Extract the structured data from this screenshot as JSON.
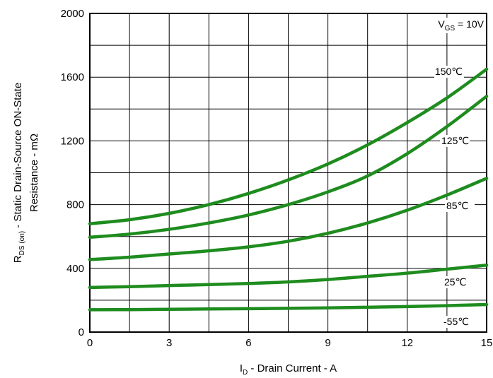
{
  "chart_data": {
    "type": "line",
    "xlabel": {
      "main": "I",
      "sub": "D",
      "rest": " - Drain Current - A"
    },
    "ylabel": {
      "line1_main": "R",
      "line1_sub": "DS (on)",
      "line1_rest": " - Static Drain-Source ON-State",
      "line2": "Resistance - mΩ"
    },
    "xlim": [
      0,
      15
    ],
    "ylim": [
      0,
      2000
    ],
    "xticks": [
      "0",
      "3",
      "6",
      "9",
      "12",
      "15"
    ],
    "yticks": [
      "0",
      "400",
      "800",
      "1200",
      "1600",
      "2000"
    ],
    "grid": true,
    "line_color": "#1e8c1e",
    "condition": {
      "main": "V",
      "sub": "GS",
      "rest": " = 10V"
    },
    "series": [
      {
        "name": "150℃",
        "x": [
          0,
          1.5,
          3,
          4.5,
          6,
          7.5,
          9,
          10.5,
          12,
          13.5,
          15
        ],
        "y": [
          680,
          705,
          745,
          800,
          870,
          955,
          1055,
          1175,
          1315,
          1470,
          1650
        ]
      },
      {
        "name": "125℃",
        "x": [
          0,
          1.5,
          3,
          4.5,
          6,
          7.5,
          9,
          10.5,
          12,
          13.5,
          15
        ],
        "y": [
          595,
          615,
          645,
          685,
          735,
          800,
          880,
          980,
          1120,
          1290,
          1480
        ]
      },
      {
        "name": "85℃",
        "x": [
          0,
          1.5,
          3,
          4.5,
          6,
          7.5,
          9,
          10.5,
          12,
          13.5,
          15
        ],
        "y": [
          455,
          470,
          490,
          510,
          535,
          570,
          620,
          685,
          765,
          860,
          965
        ]
      },
      {
        "name": "25℃",
        "x": [
          0,
          1.5,
          3,
          4.5,
          6,
          7.5,
          9,
          10.5,
          12,
          13.5,
          15
        ],
        "y": [
          280,
          285,
          292,
          298,
          305,
          315,
          330,
          350,
          370,
          395,
          420
        ]
      },
      {
        "name": "-55℃",
        "x": [
          0,
          1.5,
          3,
          4.5,
          6,
          7.5,
          9,
          10.5,
          12,
          13.5,
          15
        ],
        "y": [
          140,
          141,
          143,
          145,
          147,
          149,
          152,
          156,
          160,
          166,
          173
        ]
      }
    ]
  }
}
